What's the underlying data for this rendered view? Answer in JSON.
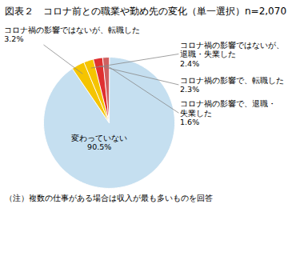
{
  "chart_data": {
    "type": "pie",
    "title": "図表２　コロナ前との職業や勤め先の変化（単一選択）n=2,070",
    "caption": "（注）複数の仕事がある場合は収入が最も多いものを回答",
    "categories": [
      "変わっていない",
      "コロナ禍の影響ではないが、転職した",
      "コロナ禍の影響ではないが、\n退職・失業した",
      "コロナ禍の影響で、転職した",
      "コロナ禍の影響で、退職・\n失業した"
    ],
    "values": [
      90.5,
      3.2,
      2.4,
      2.3,
      1.6
    ],
    "value_labels": [
      "90.5%",
      "3.2%",
      "2.4%",
      "2.3%",
      "1.6%"
    ],
    "data_labels": true,
    "colors": [
      "#c5dff0",
      "#f5c400",
      "#f5c400",
      "#e03030",
      "#d06060"
    ]
  }
}
